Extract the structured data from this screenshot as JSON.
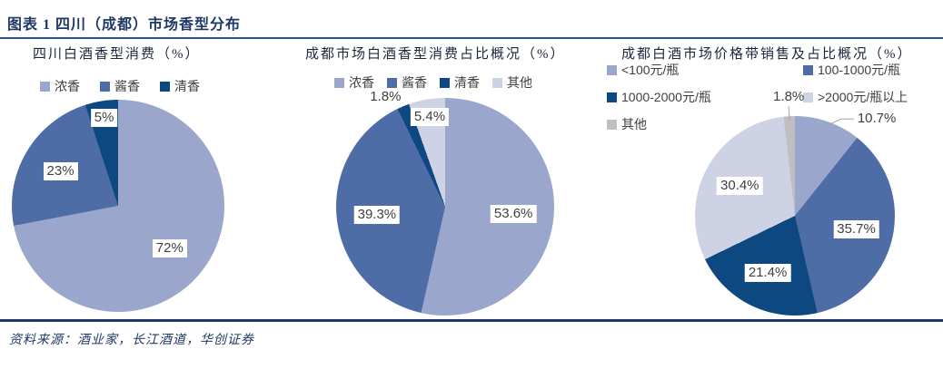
{
  "header": {
    "title": "图表 1 四川（成都）市场香型分布"
  },
  "footer": {
    "source": "资料来源：酒业家，长江酒道，华创证券"
  },
  "colors": {
    "strong_aroma": "#9AA6CC",
    "sauce_aroma": "#4E6CA6",
    "light_aroma": "#0D4880",
    "pale": "#CDD3E4",
    "grey": "#BFBFBF",
    "accent_navy": "#1F3864",
    "rule_top": "#2E5395",
    "label_text": "#404040"
  },
  "chart_data": [
    {
      "type": "pie",
      "title": "四川白酒香型消费（%）",
      "legend_position": "top",
      "slices": [
        {
          "name": "浓香",
          "value": 72,
          "label": "72%",
          "color": "#9AA6CC",
          "outside": false,
          "leader": false
        },
        {
          "name": "酱香",
          "value": 23,
          "label": "23%",
          "color": "#4E6CA6",
          "outside": false,
          "leader": false
        },
        {
          "name": "清香",
          "value": 5,
          "label": "5%",
          "color": "#0D4880",
          "outside": false,
          "leader": false
        }
      ]
    },
    {
      "type": "pie",
      "title": "成都市场白酒香型消费占比概况（%）",
      "legend_position": "top",
      "slices": [
        {
          "name": "浓香",
          "value": 53.6,
          "label": "53.6%",
          "color": "#9AA6CC",
          "outside": false,
          "leader": false
        },
        {
          "name": "酱香",
          "value": 39.3,
          "label": "39.3%",
          "color": "#4E6CA6",
          "outside": false,
          "leader": false
        },
        {
          "name": "清香",
          "value": 1.8,
          "label": "1.8%",
          "color": "#0D4880",
          "outside": true,
          "leader": false
        },
        {
          "name": "其他",
          "value": 5.4,
          "label": "5.4%",
          "color": "#CDD3E4",
          "outside": false,
          "leader": false
        }
      ]
    },
    {
      "type": "pie",
      "title": "成都白酒市场价格带销售及占比概况（%）",
      "legend_position": "top",
      "slices": [
        {
          "name": "<100元/瓶",
          "value": 10.7,
          "label": "10.7%",
          "color": "#9AA6CC",
          "outside": true,
          "leader": true
        },
        {
          "name": "100-1000元/瓶",
          "value": 35.7,
          "label": "35.7%",
          "color": "#4E6CA6",
          "outside": false,
          "leader": false
        },
        {
          "name": "1000-2000元/瓶",
          "value": 21.4,
          "label": "21.4%",
          "color": "#0D4880",
          "outside": false,
          "leader": false
        },
        {
          "name": ">2000元/瓶以上",
          "value": 30.4,
          "label": "30.4%",
          "color": "#CDD3E4",
          "outside": false,
          "leader": false
        },
        {
          "name": "其他",
          "value": 1.8,
          "label": "1.8%",
          "color": "#BFBFBF",
          "outside": true,
          "leader": true
        }
      ]
    }
  ]
}
